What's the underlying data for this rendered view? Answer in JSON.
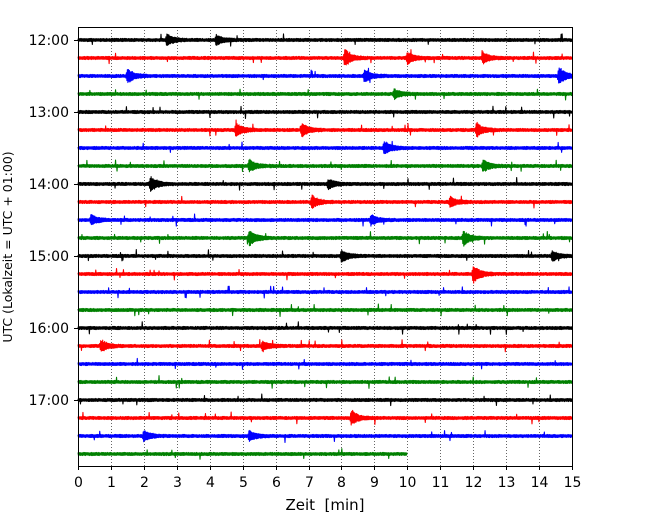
{
  "chart_data": {
    "type": "line",
    "subtype": "helicorder",
    "title": "",
    "xlabel": "Zeit  [min]",
    "ylabel": "UTC (Lokalzeit = UTC + 01:00)",
    "xlim": [
      0,
      15
    ],
    "x_ticks": [
      0,
      1,
      2,
      3,
      4,
      5,
      6,
      7,
      8,
      9,
      10,
      11,
      12,
      13,
      14,
      15
    ],
    "vertical_grid": true,
    "grid_style": "dotted",
    "trace_interval_minutes": 15,
    "y_tick_labels": [
      "12:00",
      "13:00",
      "14:00",
      "15:00",
      "16:00",
      "17:00"
    ],
    "trace_start_times": [
      "12:00",
      "12:15",
      "12:30",
      "12:45",
      "13:00",
      "13:15",
      "13:30",
      "13:45",
      "14:00",
      "14:15",
      "14:30",
      "14:45",
      "15:00",
      "15:15",
      "15:30",
      "15:45",
      "16:00",
      "16:15",
      "16:30",
      "16:45",
      "17:00",
      "17:15",
      "17:30",
      "17:45"
    ],
    "color_cycle": [
      "#000000",
      "#ff0000",
      "#0000ff",
      "#008000"
    ],
    "last_trace_end_minute": 10,
    "events": [
      {
        "trace": 0,
        "minute": 2.7,
        "amplitude": 1.4
      },
      {
        "trace": 0,
        "minute": 4.2,
        "amplitude": 1.3
      },
      {
        "trace": 1,
        "minute": 8.1,
        "amplitude": 2.2
      },
      {
        "trace": 1,
        "minute": 10.0,
        "amplitude": 1.4
      },
      {
        "trace": 1,
        "minute": 12.3,
        "amplitude": 1.4
      },
      {
        "trace": 2,
        "minute": 1.5,
        "amplitude": 1.7
      },
      {
        "trace": 2,
        "minute": 8.7,
        "amplitude": 1.5
      },
      {
        "trace": 2,
        "minute": 14.6,
        "amplitude": 2.3
      },
      {
        "trace": 3,
        "minute": 9.6,
        "amplitude": 1.2
      },
      {
        "trace": 5,
        "minute": 4.8,
        "amplitude": 1.8
      },
      {
        "trace": 5,
        "minute": 6.8,
        "amplitude": 1.6
      },
      {
        "trace": 5,
        "minute": 12.1,
        "amplitude": 1.7
      },
      {
        "trace": 6,
        "minute": 9.3,
        "amplitude": 1.7
      },
      {
        "trace": 7,
        "minute": 5.2,
        "amplitude": 1.6
      },
      {
        "trace": 7,
        "minute": 12.3,
        "amplitude": 1.5
      },
      {
        "trace": 8,
        "minute": 2.2,
        "amplitude": 2.0
      },
      {
        "trace": 8,
        "minute": 7.6,
        "amplitude": 1.2
      },
      {
        "trace": 9,
        "minute": 7.1,
        "amplitude": 1.6
      },
      {
        "trace": 9,
        "minute": 11.3,
        "amplitude": 1.3
      },
      {
        "trace": 10,
        "minute": 0.4,
        "amplitude": 1.3
      },
      {
        "trace": 10,
        "minute": 8.9,
        "amplitude": 1.3
      },
      {
        "trace": 11,
        "minute": 5.2,
        "amplitude": 2.0
      },
      {
        "trace": 11,
        "minute": 11.7,
        "amplitude": 1.8
      },
      {
        "trace": 12,
        "minute": 8.0,
        "amplitude": 1.6
      },
      {
        "trace": 12,
        "minute": 14.4,
        "amplitude": 1.3
      },
      {
        "trace": 13,
        "minute": 12.0,
        "amplitude": 2.3
      },
      {
        "trace": 17,
        "minute": 0.7,
        "amplitude": 1.5
      },
      {
        "trace": 17,
        "minute": 5.6,
        "amplitude": 1.2
      },
      {
        "trace": 21,
        "minute": 8.3,
        "amplitude": 1.8
      },
      {
        "trace": 22,
        "minute": 2.0,
        "amplitude": 1.3
      },
      {
        "trace": 22,
        "minute": 5.2,
        "amplitude": 1.3
      }
    ]
  }
}
